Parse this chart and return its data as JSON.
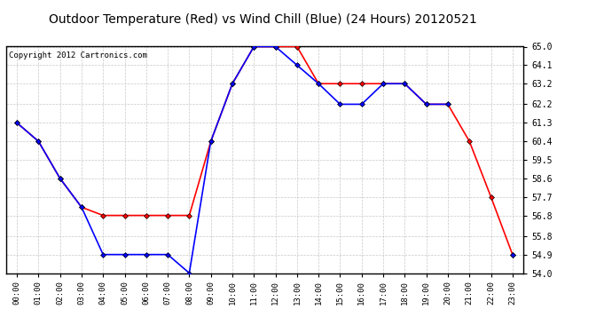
{
  "title": "Outdoor Temperature (Red) vs Wind Chill (Blue) (24 Hours) 20120521",
  "copyright": "Copyright 2012 Cartronics.com",
  "x_labels": [
    "00:00",
    "01:00",
    "02:00",
    "03:00",
    "04:00",
    "05:00",
    "06:00",
    "07:00",
    "08:00",
    "09:00",
    "10:00",
    "11:00",
    "12:00",
    "13:00",
    "14:00",
    "15:00",
    "16:00",
    "17:00",
    "18:00",
    "19:00",
    "20:00",
    "21:00",
    "22:00",
    "23:00"
  ],
  "red_temps": [
    61.3,
    60.4,
    58.6,
    57.2,
    56.8,
    56.8,
    56.8,
    56.8,
    56.8,
    60.4,
    63.2,
    65.0,
    65.0,
    65.0,
    63.2,
    63.2,
    63.2,
    63.2,
    63.2,
    62.2,
    62.2,
    60.4,
    57.7,
    54.9
  ],
  "blue_temps": [
    61.3,
    60.4,
    58.6,
    57.2,
    54.9,
    54.9,
    54.9,
    54.9,
    54.0,
    60.4,
    63.2,
    65.0,
    65.0,
    64.1,
    63.2,
    62.2,
    62.2,
    63.2,
    63.2,
    62.2,
    62.2,
    null,
    null,
    54.9
  ],
  "ylim": [
    54.0,
    65.0
  ],
  "yticks": [
    54.0,
    54.9,
    55.8,
    56.8,
    57.7,
    58.6,
    59.5,
    60.4,
    61.3,
    62.2,
    63.2,
    64.1,
    65.0
  ],
  "red_color": "#FF0000",
  "blue_color": "#0000FF",
  "bg_color": "#FFFFFF",
  "grid_color": "#C8C8C8",
  "title_fontsize": 10,
  "copyright_fontsize": 6.5,
  "marker": "D",
  "markersize": 3,
  "linewidth": 1.2
}
